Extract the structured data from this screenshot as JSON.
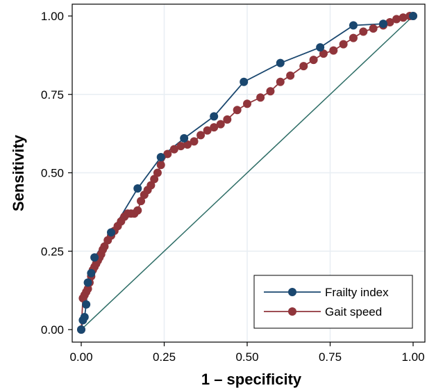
{
  "chart_data": {
    "type": "line",
    "title": "",
    "xlabel": "1 – specificity",
    "ylabel": "Sensitivity",
    "xlim": [
      0,
      1
    ],
    "ylim": [
      0,
      1
    ],
    "xticks": [
      "0.00",
      "0.25",
      "0.50",
      "0.75",
      "1.00"
    ],
    "yticks": [
      "0.00",
      "0.25",
      "0.50",
      "0.75",
      "1.00"
    ],
    "grid": true,
    "legend_position": "bottom-right",
    "colors": {
      "frailty": "#1a476f",
      "gait": "#90353b",
      "reference": "#2d6d66",
      "grid": "#e8eef3"
    },
    "reference_line": {
      "x": [
        0,
        1
      ],
      "y": [
        0,
        1
      ]
    },
    "series": [
      {
        "name": "Frailty index",
        "color": "#1a476f",
        "x": [
          0.0,
          0.005,
          0.01,
          0.015,
          0.02,
          0.03,
          0.04,
          0.09,
          0.17,
          0.24,
          0.31,
          0.4,
          0.49,
          0.6,
          0.72,
          0.82,
          0.91,
          1.0
        ],
        "y": [
          0.0,
          0.03,
          0.04,
          0.08,
          0.15,
          0.18,
          0.23,
          0.31,
          0.45,
          0.55,
          0.61,
          0.68,
          0.79,
          0.85,
          0.9,
          0.97,
          0.975,
          1.0
        ]
      },
      {
        "name": "Gait speed",
        "color": "#90353b",
        "x": [
          0.0,
          0.005,
          0.01,
          0.015,
          0.02,
          0.025,
          0.03,
          0.035,
          0.04,
          0.045,
          0.05,
          0.055,
          0.06,
          0.065,
          0.07,
          0.08,
          0.09,
          0.1,
          0.11,
          0.12,
          0.13,
          0.14,
          0.15,
          0.16,
          0.17,
          0.18,
          0.19,
          0.2,
          0.21,
          0.22,
          0.23,
          0.24,
          0.26,
          0.28,
          0.3,
          0.32,
          0.34,
          0.36,
          0.38,
          0.4,
          0.42,
          0.44,
          0.47,
          0.5,
          0.54,
          0.57,
          0.6,
          0.63,
          0.67,
          0.7,
          0.73,
          0.76,
          0.79,
          0.82,
          0.85,
          0.88,
          0.91,
          0.93,
          0.95,
          0.97,
          0.99,
          1.0
        ],
        "y": [
          0.0,
          0.1,
          0.11,
          0.12,
          0.13,
          0.15,
          0.17,
          0.19,
          0.2,
          0.21,
          0.22,
          0.23,
          0.24,
          0.255,
          0.265,
          0.285,
          0.3,
          0.315,
          0.33,
          0.345,
          0.36,
          0.37,
          0.37,
          0.37,
          0.38,
          0.41,
          0.43,
          0.445,
          0.46,
          0.48,
          0.5,
          0.525,
          0.56,
          0.575,
          0.585,
          0.59,
          0.6,
          0.62,
          0.635,
          0.645,
          0.655,
          0.67,
          0.7,
          0.72,
          0.74,
          0.76,
          0.79,
          0.81,
          0.84,
          0.86,
          0.88,
          0.89,
          0.91,
          0.93,
          0.95,
          0.96,
          0.97,
          0.98,
          0.99,
          0.995,
          1.0,
          1.0
        ]
      }
    ]
  }
}
